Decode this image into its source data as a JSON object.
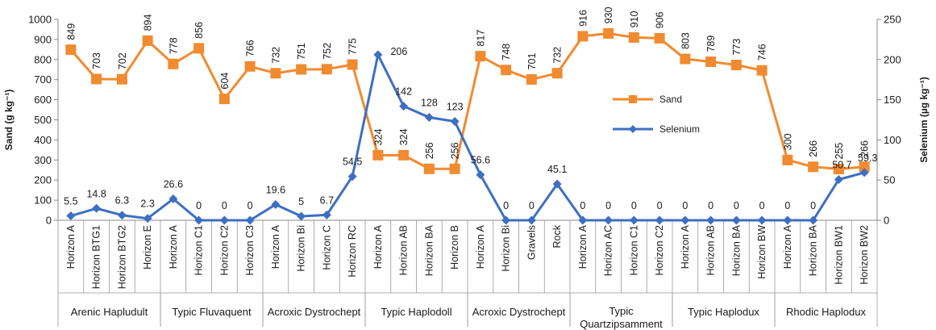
{
  "chart_data": {
    "type": "line",
    "categories": [
      "Horizon A",
      "Horizon BTG1",
      "Horizon BTG2",
      "Horizon E",
      "Horizon A",
      "Horizon C1",
      "Horizon C2",
      "Horizon C3",
      "Horizon A",
      "Horizon Bi",
      "Horizon C",
      "Horizon RC",
      "Horizon A",
      "Horizon AB",
      "Horizon BA",
      "Horizon B",
      "Horizon A",
      "Horizon Bi",
      "Gravels",
      "Rock",
      "Horizon A",
      "Horizon AC",
      "Horizon C1",
      "Horizon C2",
      "Horizon A",
      "Horizon AB",
      "Horizon BA",
      "Horizon BW",
      "Horizon A",
      "Horizon BA",
      "Horizon BW1",
      "Horizon BW2"
    ],
    "groups": [
      {
        "label": "Arenic Hapludult",
        "start": 0,
        "end": 3
      },
      {
        "label": "Typic Fluvaquent",
        "start": 4,
        "end": 7
      },
      {
        "label": "Acroxic Dystrochept",
        "start": 8,
        "end": 11
      },
      {
        "label": "Typic Haplodoll",
        "start": 12,
        "end": 15
      },
      {
        "label": "Acroxic Dystrochept",
        "start": 16,
        "end": 19
      },
      {
        "label": "Typic Quartzipsamment",
        "line1": "Typic",
        "line2": "Quartzipsamment",
        "start": 20,
        "end": 23
      },
      {
        "label": "Typic Haplodux",
        "start": 24,
        "end": 27
      },
      {
        "label": "Rhodic Haplodux",
        "start": 28,
        "end": 31
      }
    ],
    "series": [
      {
        "name": "Sand",
        "axis": "left",
        "color": "#F28A30",
        "marker": "square",
        "values": [
          849,
          703,
          702,
          894,
          778,
          856,
          604,
          766,
          732,
          751,
          752,
          775,
          324,
          324,
          256,
          256,
          817,
          748,
          701,
          732,
          916,
          930,
          910,
          906,
          803,
          789,
          773,
          746,
          300,
          266,
          255,
          266
        ],
        "labels": [
          "849",
          "703",
          "702",
          "894",
          "778",
          "856",
          "604",
          "766",
          "732",
          "751",
          "752",
          "775",
          "324",
          "324",
          "256",
          "256",
          "817",
          "748",
          "701",
          "732",
          "916",
          "930",
          "910",
          "906",
          "803",
          "789",
          "773",
          "746",
          "300",
          "266",
          "255",
          "266"
        ]
      },
      {
        "name": "Selenium",
        "axis": "right",
        "color": "#3D6FC2",
        "marker": "diamond",
        "values": [
          5.5,
          14.8,
          6.3,
          2.3,
          26.6,
          0,
          0,
          0,
          19.6,
          5,
          6.7,
          54.5,
          206,
          142,
          128,
          123,
          56.6,
          0,
          0,
          45.1,
          0,
          0,
          0,
          0,
          0,
          0,
          0,
          0,
          0,
          0,
          50.7,
          59.3
        ],
        "labels": [
          "5.5",
          "14.8",
          "6.3",
          "2.3",
          "26.6",
          "0",
          "0",
          "0",
          "19.6",
          "5",
          "6.7",
          "54.5",
          "206",
          "142",
          "128",
          "123",
          "56.6",
          "0",
          "0",
          "45.1",
          "0",
          "0",
          "0",
          "0",
          "0",
          "0",
          "0",
          "0",
          "0",
          "0",
          "50.7",
          "59.3"
        ]
      }
    ],
    "y_left": {
      "label": "Sand (g kg⁻¹)",
      "min": 0,
      "max": 1000,
      "ticks": [
        "0",
        "100",
        "200",
        "300",
        "400",
        "500",
        "600",
        "700",
        "800",
        "900",
        "1000"
      ]
    },
    "y_right": {
      "label": "Selenium (µg kg⁻¹)",
      "min": 0,
      "max": 250,
      "ticks": [
        "0",
        "50",
        "100",
        "150",
        "200",
        "250"
      ]
    },
    "grid": false,
    "legend_position": "center-right"
  }
}
